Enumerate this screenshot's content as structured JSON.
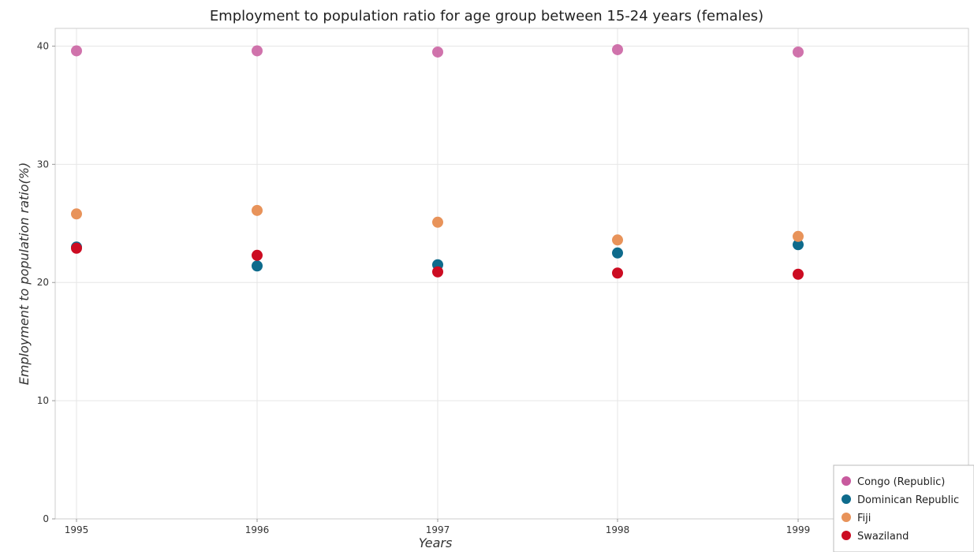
{
  "chart_data": {
    "type": "scatter",
    "title": "Employment to population ratio for age group between 15-24 years (females)",
    "xlabel": "Years",
    "ylabel": "Employment to population ratio(%)",
    "categories": [
      "1995",
      "1996",
      "1997",
      "1998",
      "1999"
    ],
    "ylim": [
      0,
      41.5
    ],
    "yticks": [
      0,
      10,
      20,
      30,
      40
    ],
    "grid": true,
    "legend_position": "bottom-right",
    "series": [
      {
        "name": "Congo (Republic)",
        "color": "#c85a9e",
        "values": [
          39.6,
          39.6,
          39.5,
          39.7,
          39.5
        ]
      },
      {
        "name": "Dominican Republic",
        "color": "#0e6b8c",
        "values": [
          23.0,
          21.4,
          21.5,
          22.5,
          23.2
        ]
      },
      {
        "name": "Fiji",
        "color": "#e8935a",
        "values": [
          25.8,
          26.1,
          25.1,
          23.6,
          23.9
        ]
      },
      {
        "name": "Swaziland",
        "color": "#cc0c22",
        "values": [
          22.9,
          22.3,
          20.9,
          20.8,
          20.7
        ]
      }
    ]
  }
}
